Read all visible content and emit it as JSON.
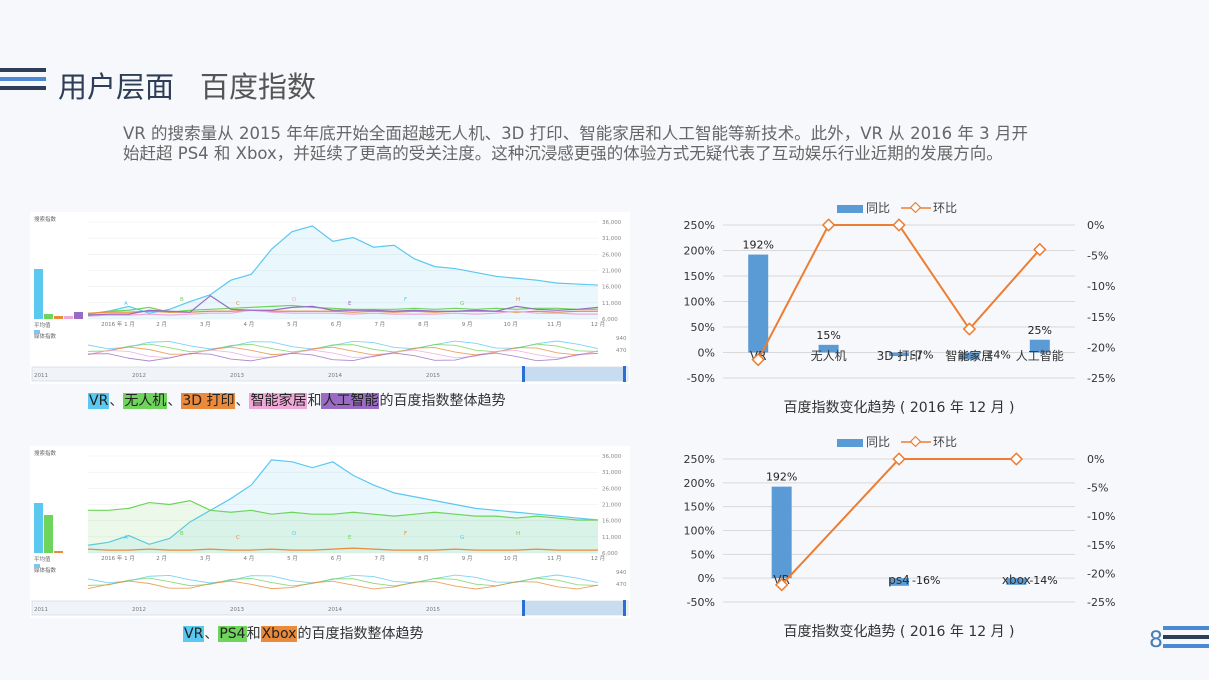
{
  "header": {
    "title": "用户层面",
    "subtitle": "百度指数",
    "intro": "VR 的搜索量从 2015 年年底开始全面超越无人机、3D 打印、智能家居和人工智能等新技术。此外，VR 从 2016 年 3 月开始赶超 PS4 和 Xbox，并延续了更高的受关注度。这种沉浸感更强的体验方式无疑代表了互动娱乐行业近期的发展方向。"
  },
  "page_number": "8",
  "colors": {
    "navy": "#2d3e56",
    "blue": "#4a8ad4",
    "bar": "#5b9bd5",
    "line": "#ed7d31"
  },
  "captions": {
    "top": {
      "items": [
        "VR",
        "无人机",
        "3D 打印",
        "智能家居",
        "人工智能"
      ],
      "sep": "、",
      "joiner": "和",
      "suffix": "的百度指数整体趋势",
      "colors": [
        "#5bc8f0",
        "#6fd45b",
        "#ea8a3a",
        "#f0a8d8",
        "#9a6bc4"
      ]
    },
    "bottom": {
      "items": [
        "VR",
        "PS4",
        "Xbox"
      ],
      "sep": "、",
      "joiner": "和",
      "suffix": "的百度指数整体趋势",
      "colors": [
        "#5bc8f0",
        "#6fd45b",
        "#ea8a3a"
      ]
    }
  },
  "chart_data": [
    {
      "type": "bar",
      "title": "百度指数变化趋势 ( 2016 年 12 月 )",
      "legend": [
        "同比",
        "环比"
      ],
      "legend_position": "top",
      "categories": [
        "VR",
        "无人机",
        "3D 打印",
        "智能家居",
        "人工智能"
      ],
      "series": [
        {
          "name": "同比",
          "type": "bar",
          "axis": "left",
          "values": [
            192,
            15,
            -7,
            -14,
            25
          ],
          "labels": [
            "192%",
            "15%",
            "-7%",
            "-14%",
            "25%"
          ]
        },
        {
          "name": "环比",
          "type": "line",
          "axis": "right",
          "values": [
            -22,
            0,
            0,
            -17,
            -4
          ]
        }
      ],
      "ylim": [
        -50,
        250
      ],
      "yticks": [
        250,
        200,
        150,
        100,
        50,
        0,
        -50
      ],
      "ytick_labels": [
        "250%",
        "200%",
        "150%",
        "100%",
        "50%",
        "0%",
        "-50%"
      ],
      "y2lim": [
        -25,
        0
      ],
      "y2ticks": [
        0,
        -5,
        -10,
        -15,
        -20,
        -25
      ],
      "y2tick_labels": [
        "0%",
        "-5%",
        "-10%",
        "-15%",
        "-20%",
        "-25%"
      ],
      "grid": true
    },
    {
      "type": "bar",
      "title": "百度指数变化趋势 ( 2016 年 12 月 )",
      "legend": [
        "同比",
        "环比"
      ],
      "legend_position": "top",
      "categories": [
        "VR",
        "ps4",
        "xbox"
      ],
      "series": [
        {
          "name": "同比",
          "type": "bar",
          "axis": "left",
          "values": [
            192,
            -16,
            -14
          ],
          "labels": [
            "192%",
            "-16%",
            "-14%"
          ]
        },
        {
          "name": "环比",
          "type": "line",
          "axis": "right",
          "values": [
            -22,
            0,
            0
          ]
        }
      ],
      "ylim": [
        -50,
        250
      ],
      "yticks": [
        250,
        200,
        150,
        100,
        50,
        0,
        -50
      ],
      "ytick_labels": [
        "250%",
        "200%",
        "150%",
        "100%",
        "50%",
        "0%",
        "-50%"
      ],
      "y2lim": [
        -25,
        0
      ],
      "y2ticks": [
        0,
        -5,
        -10,
        -15,
        -20,
        -25
      ],
      "y2tick_labels": [
        "0%",
        "-5%",
        "-10%",
        "-15%",
        "-20%",
        "-25%"
      ],
      "grid": true
    },
    {
      "type": "line",
      "title": "搜索指数",
      "series": [
        {
          "name": "VR",
          "values": [
            5,
            8,
            13,
            6,
            10,
            18,
            25,
            40,
            46,
            72,
            90,
            96,
            80,
            84,
            74,
            76,
            62,
            54,
            52,
            48,
            44,
            42,
            40,
            37,
            36,
            35
          ]
        },
        {
          "name": "无人机",
          "values": [
            5,
            8,
            9,
            12,
            7,
            9,
            10,
            11,
            12,
            13,
            14,
            12,
            11,
            10,
            10,
            10,
            11,
            10,
            11,
            10,
            11,
            10,
            11,
            11,
            10,
            10
          ]
        },
        {
          "name": "3D 打印",
          "values": [
            6,
            7,
            7,
            8,
            7,
            7,
            8,
            8,
            9,
            8,
            8,
            8,
            8,
            7,
            8,
            7,
            8,
            7,
            8,
            8,
            8,
            7,
            8,
            7,
            8,
            8
          ]
        },
        {
          "name": "智能家居",
          "values": [
            3,
            4,
            4,
            5,
            4,
            5,
            6,
            6,
            9,
            7,
            6,
            6,
            6,
            5,
            6,
            5,
            5,
            5,
            6,
            5,
            6,
            8,
            6,
            6,
            5,
            5
          ]
        },
        {
          "name": "人工智能",
          "values": [
            4,
            5,
            5,
            9,
            8,
            7,
            24,
            10,
            9,
            9,
            12,
            13,
            9,
            9,
            9,
            8,
            9,
            8,
            8,
            9,
            8,
            13,
            10,
            9,
            10,
            12
          ]
        }
      ],
      "y2tick_labels": [
        "36,000",
        "31,000",
        "26,000",
        "21,000",
        "16,000",
        "11,000",
        "6,000"
      ],
      "xtick_labels": [
        "2016 年 1 月",
        "2 月",
        "3 月",
        "4 月",
        "5 月",
        "6 月",
        "7 月",
        "8 月",
        "9 月",
        "10 月",
        "11 月",
        "12 月"
      ],
      "annotations": [
        "A",
        "B",
        "C",
        "D",
        "E",
        "F",
        "G",
        "H"
      ],
      "avg_label": "平均值",
      "media_label": "媒体指数",
      "media_ticks": [
        "940",
        "470"
      ],
      "avg_values": [
        50,
        5,
        3,
        3,
        7
      ],
      "range_years": [
        "2011",
        "2012",
        "2013",
        "2014",
        "2015"
      ]
    },
    {
      "type": "line",
      "title": "搜索指数",
      "series": [
        {
          "name": "VR",
          "values": [
            8,
            11,
            18,
            9,
            15,
            32,
            44,
            56,
            70,
            96,
            94,
            88,
            94,
            80,
            70,
            62,
            58,
            54,
            50,
            46,
            44,
            42,
            40,
            38,
            36,
            34
          ]
        },
        {
          "name": "PS4",
          "values": [
            44,
            44,
            46,
            52,
            50,
            54,
            44,
            42,
            44,
            40,
            42,
            40,
            40,
            42,
            40,
            38,
            40,
            42,
            40,
            38,
            38,
            36,
            38,
            36,
            34,
            34
          ]
        },
        {
          "name": "Xbox",
          "values": [
            4,
            3,
            3,
            4,
            3,
            3,
            4,
            3,
            3,
            4,
            3,
            3,
            4,
            5,
            4,
            3,
            3,
            3,
            4,
            3,
            3,
            3,
            4,
            3,
            3,
            3
          ]
        }
      ],
      "y2tick_labels": [
        "36,000",
        "31,000",
        "26,000",
        "21,000",
        "16,000",
        "11,000",
        "6,000"
      ],
      "xtick_labels": [
        "2016 年 1 月",
        "2 月",
        "3 月",
        "4 月",
        "5 月",
        "6 月",
        "7 月",
        "8 月",
        "9 月",
        "10 月",
        "11 月",
        "12 月"
      ],
      "annotations": [
        "A",
        "B",
        "C",
        "D",
        "E",
        "F",
        "G",
        "H"
      ],
      "avg_label": "平均值",
      "media_label": "媒体指数",
      "media_ticks": [
        "940",
        "470"
      ],
      "avg_values": [
        50,
        38,
        2
      ],
      "range_years": [
        "2011",
        "2012",
        "2013",
        "2014",
        "2015"
      ]
    }
  ]
}
